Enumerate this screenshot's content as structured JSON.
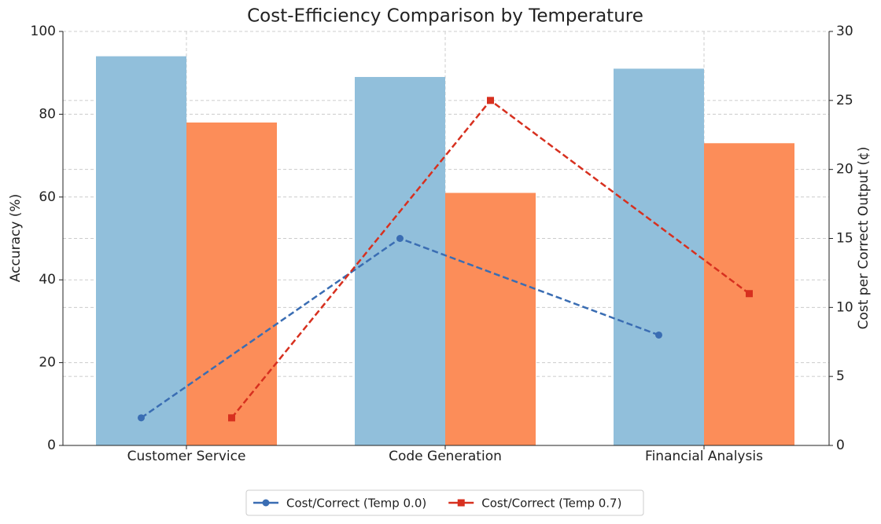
{
  "chart_data": {
    "type": "bar",
    "title": "Cost-Efficiency Comparison by Temperature",
    "categories": [
      "Customer Service",
      "Code Generation",
      "Financial Analysis"
    ],
    "ylabel": "Accuracy (%)",
    "y2label": "Cost per Correct Output (¢)",
    "ylim": [
      0,
      100
    ],
    "yticks": [
      0,
      20,
      40,
      60,
      80,
      100
    ],
    "y2lim": [
      0,
      30
    ],
    "y2ticks": [
      0,
      5,
      10,
      15,
      20,
      25,
      30
    ],
    "grid": true,
    "legend": "bottom",
    "series": [
      {
        "color": "#91bfdb",
        "values": [
          94,
          89,
          91
        ]
      },
      {
        "color": "#fc8d59",
        "values": [
          78,
          61,
          73
        ]
      },
      {
        "name": "Cost/Correct (Temp 0.0)",
        "type": "line",
        "marker": "circle",
        "axis": "y2",
        "color": "#3a6db3",
        "values": [
          2,
          15,
          8
        ]
      },
      {
        "name": "Cost/Correct (Temp 0.7)",
        "type": "line",
        "marker": "square",
        "axis": "y2",
        "color": "#d7301f",
        "values": [
          2,
          25,
          11
        ]
      }
    ]
  }
}
